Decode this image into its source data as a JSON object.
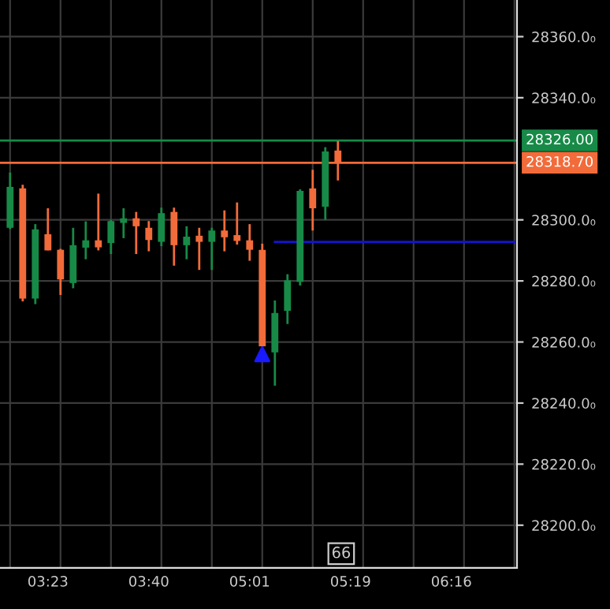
{
  "chart_data": {
    "type": "candlestick",
    "categories": [
      null,
      null,
      null,
      "03:23",
      null,
      null,
      null,
      null,
      null,
      null,
      null,
      "03:40",
      null,
      null,
      null,
      null,
      null,
      null,
      null,
      "05:01",
      null,
      null,
      null,
      null,
      null,
      null,
      null,
      "05:19",
      null,
      null,
      null,
      null,
      null,
      null,
      null,
      "06:16",
      null,
      null,
      null,
      null,
      null
    ],
    "ohlc": [
      [
        28297.4,
        28315.5,
        28297.0,
        28310.8
      ],
      [
        28310.3,
        28311.5,
        28273.3,
        28274.2
      ],
      [
        28274.2,
        28298.6,
        28272.4,
        28296.9
      ],
      [
        28295.3,
        28303.8,
        28290.0,
        28290.0
      ],
      [
        28290.2,
        28290.5,
        28275.4,
        28280.5
      ],
      [
        28279.3,
        28297.4,
        28277.6,
        28291.7
      ],
      [
        28290.9,
        28299.5,
        28287.1,
        28293.3
      ],
      [
        28293.3,
        28308.6,
        28290.0,
        28291.0
      ],
      [
        28292.4,
        28300.0,
        28288.8,
        28299.6
      ],
      [
        28299.0,
        28303.8,
        28294.0,
        28300.5
      ],
      [
        28300.5,
        28302.6,
        28288.8,
        28297.9
      ],
      [
        28297.4,
        28299.6,
        28289.7,
        28293.4
      ],
      [
        28292.8,
        28304.0,
        28291.4,
        28302.2
      ],
      [
        28302.6,
        28304.0,
        28285.0,
        28291.7
      ],
      [
        28291.7,
        28297.9,
        28287.1,
        28294.5
      ],
      [
        28294.8,
        28297.4,
        28283.6,
        28292.8
      ],
      [
        28292.8,
        28297.4,
        28283.6,
        28296.5
      ],
      [
        28296.5,
        28303.1,
        28289.7,
        28294.3
      ],
      [
        28295.0,
        28305.7,
        28291.9,
        28293.1
      ],
      [
        28293.3,
        28298.6,
        28286.6,
        28290.2
      ],
      [
        28290.2,
        28292.2,
        28258.6,
        28258.6
      ],
      [
        28256.6,
        28273.6,
        28245.7,
        28269.5
      ],
      [
        28270.2,
        28282.2,
        28265.9,
        28280.2
      ],
      [
        28279.7,
        28310.0,
        28278.5,
        28309.5
      ],
      [
        28310.3,
        28316.4,
        28296.5,
        28303.8
      ],
      [
        28304.3,
        28323.8,
        28300.0,
        28322.4
      ],
      [
        28322.7,
        28325.8,
        28312.9,
        28318.7
      ],
      null,
      null,
      null,
      null,
      null,
      null,
      null,
      null,
      null,
      null,
      null,
      null,
      null,
      null
    ],
    "colors": [
      "#178a47",
      "#f26b3a",
      "#178a47",
      "#f26b3a",
      "#f26b3a",
      "#178a47",
      "#178a47",
      "#f26b3a",
      "#178a47",
      "#178a47",
      "#f26b3a",
      "#f26b3a",
      "#178a47",
      "#f26b3a",
      "#178a47",
      "#f26b3a",
      "#178a47",
      "#f26b3a",
      "#f26b3a",
      "#f26b3a",
      "#f26b3a",
      "#178a47",
      "#178a47",
      "#178a47",
      "#f26b3a",
      "#178a47",
      "#f26b3a",
      null,
      null,
      null,
      null,
      null,
      null,
      null,
      null,
      null,
      null,
      null,
      null,
      null,
      null
    ],
    "series": [
      {
        "type": "line",
        "color": "#1414d2",
        "values": [
          null,
          null,
          null,
          null,
          null,
          null,
          null,
          null,
          null,
          null,
          null,
          null,
          null,
          null,
          null,
          null,
          null,
          null,
          null,
          null,
          null,
          28292.8,
          28292.8,
          28292.8,
          28292.8,
          28292.8,
          28292.8,
          28292.8,
          28292.8,
          28292.8,
          28292.8,
          28292.8,
          28292.8,
          28292.8,
          28292.8,
          28292.8,
          28292.8,
          28292.8,
          28292.8,
          28292.8,
          28292.8
        ]
      },
      {
        "type": "scatter",
        "color": "#1a1aff",
        "marker": "triangle",
        "values": [
          null,
          null,
          null,
          null,
          null,
          null,
          null,
          null,
          null,
          null,
          null,
          null,
          null,
          null,
          null,
          null,
          null,
          null,
          null,
          null,
          28256,
          null,
          null,
          null,
          null,
          null,
          null,
          null,
          null,
          null,
          null,
          null,
          null,
          null,
          null,
          null,
          null,
          null,
          null,
          null,
          null
        ]
      }
    ],
    "ref_lines": [
      {
        "axis": "y",
        "value": 28326.0,
        "label": "28326.00",
        "color": "#178a47"
      },
      {
        "axis": "y",
        "value": 28318.7,
        "label": "28318.70",
        "color": "#f26b3a"
      }
    ],
    "annotations": [
      "66"
    ],
    "ylim": [
      28186,
      28372
    ],
    "yticks": [
      {
        "value": 28200,
        "label": "28200.0₀"
      },
      {
        "value": 28220,
        "label": "28220.0₀"
      },
      {
        "value": 28240,
        "label": "28240.0₀"
      },
      {
        "value": 28260,
        "label": "28260.0₀"
      },
      {
        "value": 28280,
        "label": "28280.0₀"
      },
      {
        "value": 28300,
        "label": "28300.0₀"
      },
      {
        "value": 28340,
        "label": "28340.0₀"
      },
      {
        "value": 28360,
        "label": "28360.0₀"
      }
    ],
    "grid": true
  }
}
